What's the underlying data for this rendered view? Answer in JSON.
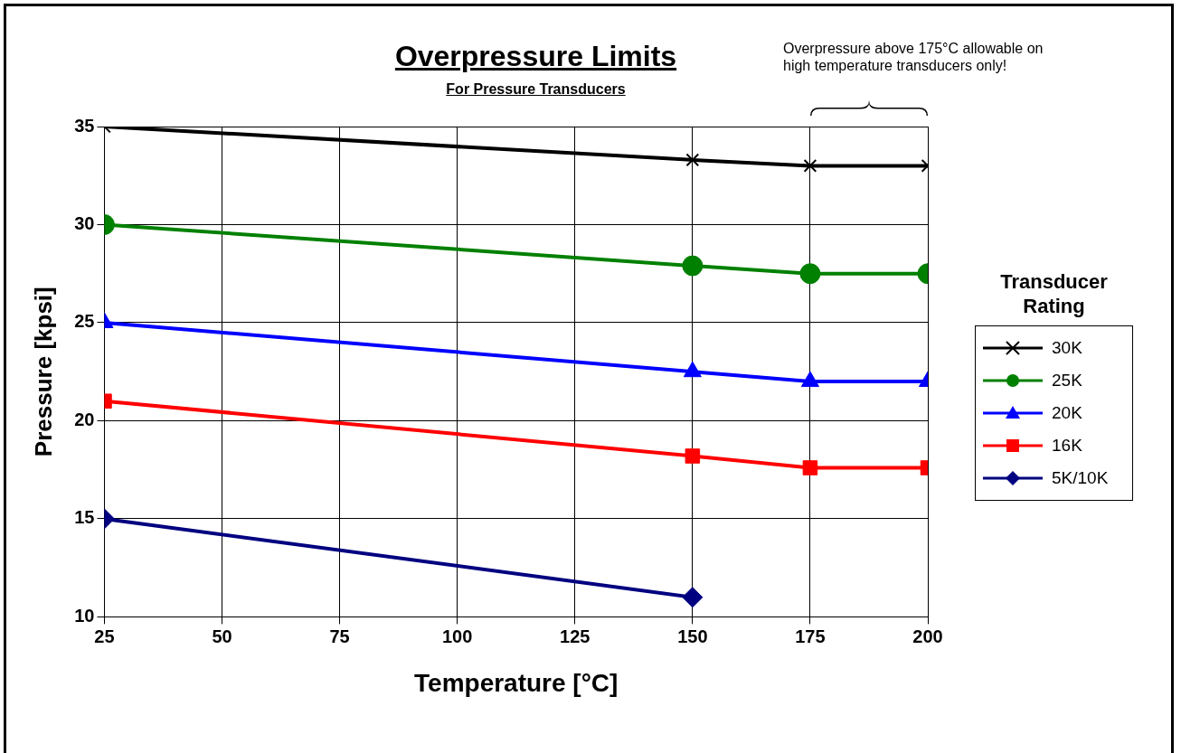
{
  "chart_data": {
    "type": "line",
    "title": "Overpressure Limits",
    "subtitle": "For Pressure Transducers",
    "xlabel": "Temperature [°C]",
    "ylabel": "Pressure [kpsi]",
    "legend_title": "Transducer Rating",
    "legend": "right",
    "grid": true,
    "line_style": "solid",
    "annotations": [
      "Overpressure above 175°C allowable on high temperature transducers only!"
    ],
    "xlim": [
      25,
      200
    ],
    "xticks": [
      25,
      50,
      75,
      100,
      125,
      150,
      175,
      200
    ],
    "ylim": [
      10,
      35
    ],
    "yticks": [
      10,
      15,
      20,
      25,
      30,
      35
    ],
    "series": [
      {
        "name": "30K",
        "color": "#000000",
        "marker": "cross",
        "x": [
          25,
          150,
          175,
          200
        ],
        "values": [
          35,
          33.3,
          33,
          33
        ]
      },
      {
        "name": "25K",
        "color": "#008000",
        "marker": "circle",
        "x": [
          25,
          150,
          175,
          200
        ],
        "values": [
          30,
          27.9,
          27.5,
          27.5
        ]
      },
      {
        "name": "20K",
        "color": "#0000ff",
        "marker": "triangle",
        "x": [
          25,
          150,
          175,
          200
        ],
        "values": [
          25,
          22.5,
          22,
          22
        ]
      },
      {
        "name": "16K",
        "color": "#ff0000",
        "marker": "square",
        "x": [
          25,
          150,
          175,
          200
        ],
        "values": [
          21,
          18.2,
          17.6,
          17.6
        ]
      },
      {
        "name": "5K/10K",
        "color": "#000080",
        "marker": "diamond",
        "x": [
          25,
          150
        ],
        "values": [
          15,
          11
        ]
      }
    ]
  }
}
